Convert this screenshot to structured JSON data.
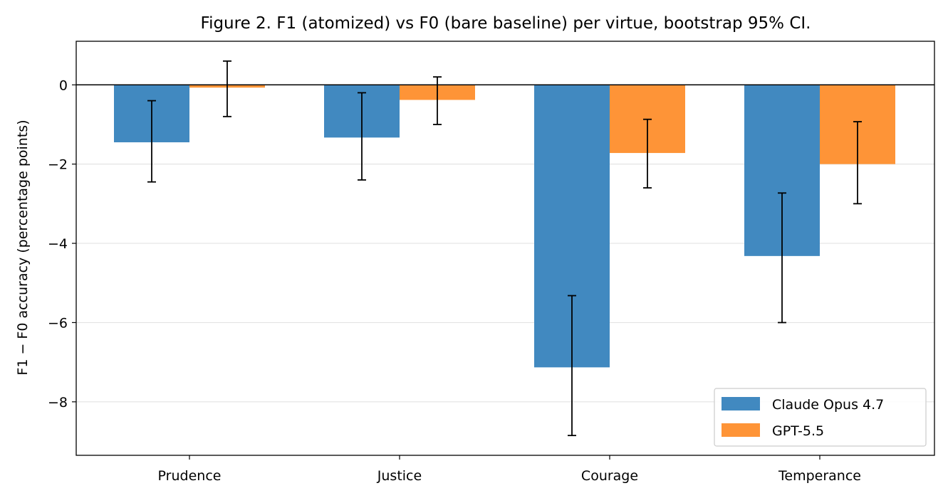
{
  "chart_data": {
    "type": "bar",
    "title": "Figure 2. F1 (atomized) vs F0 (bare baseline) per virtue, bootstrap 95% CI.",
    "xlabel": "",
    "ylabel": "F1 − F0 accuracy (percentage points)",
    "categories": [
      "Prudence",
      "Justice",
      "Courage",
      "Temperance"
    ],
    "series": [
      {
        "name": "Claude Opus 4.7",
        "color": "#4189c0",
        "values": [
          -1.45,
          -1.33,
          -7.13,
          -4.32
        ],
        "ci_low": [
          -2.45,
          -2.4,
          -8.85,
          -6.0
        ],
        "ci_high": [
          -0.4,
          -0.2,
          -5.32,
          -2.73
        ]
      },
      {
        "name": "GPT-5.5",
        "color": "#fe9437",
        "values": [
          -0.07,
          -0.38,
          -1.72,
          -2.0
        ],
        "ci_low": [
          -0.8,
          -1.0,
          -2.6,
          -3.0
        ],
        "ci_high": [
          0.6,
          0.2,
          -0.87,
          -0.93
        ]
      }
    ],
    "ylim": [
      -9.35,
      1.1
    ],
    "yticks": [
      0,
      -2,
      -4,
      -6,
      -8
    ],
    "ytick_labels": [
      "0",
      "−2",
      "−4",
      "−6",
      "−8"
    ],
    "grid": "y",
    "zero_line": true,
    "legend": "bottom-right"
  }
}
